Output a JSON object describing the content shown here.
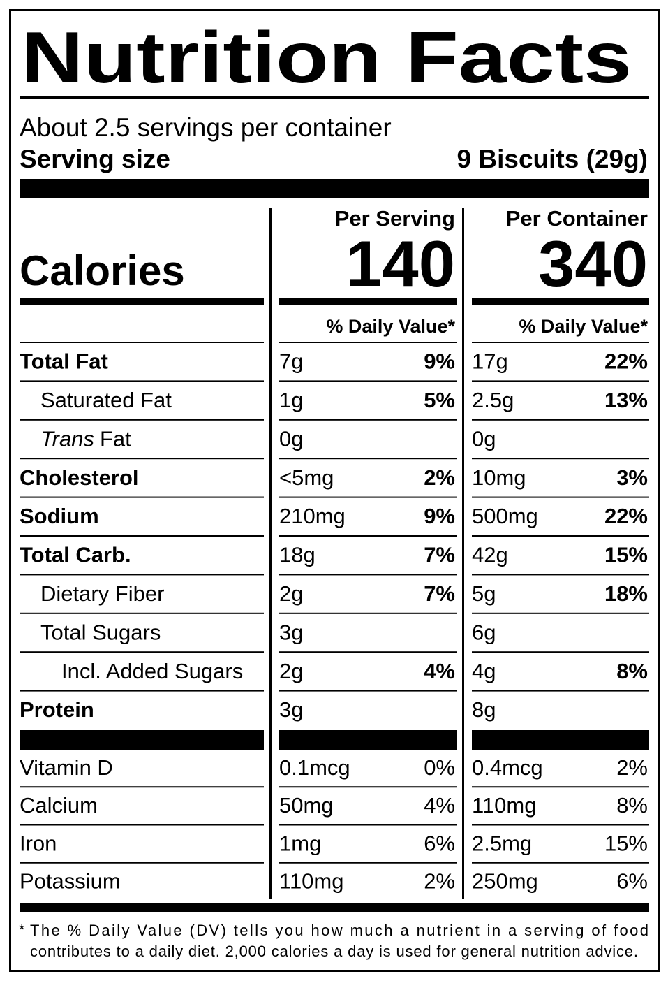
{
  "title": "Nutrition Facts",
  "servings_per_container": "About 2.5 servings per container",
  "serving_size": {
    "label": "Serving size",
    "value": "9 Biscuits (29g)"
  },
  "calories_label": "Calories",
  "columns": [
    {
      "heading": "Per Serving",
      "calories": "140",
      "daily_value_heading": "% Daily Value*"
    },
    {
      "heading": "Per Container",
      "calories": "340",
      "daily_value_heading": "% Daily Value*"
    }
  ],
  "nutrients": [
    {
      "name": "Total Fat",
      "bold": true,
      "indent": 0,
      "amounts": [
        "7g",
        "17g"
      ],
      "daily_values": [
        "9%",
        "22%"
      ]
    },
    {
      "name": "Saturated Fat",
      "bold": false,
      "indent": 1,
      "amounts": [
        "1g",
        "2.5g"
      ],
      "daily_values": [
        "5%",
        "13%"
      ]
    },
    {
      "name_italic": "Trans",
      "name": "Fat",
      "bold": false,
      "indent": 1,
      "amounts": [
        "0g",
        "0g"
      ]
    },
    {
      "name": "Cholesterol",
      "bold": true,
      "indent": 0,
      "amounts": [
        "<5mg",
        "10mg"
      ],
      "daily_values": [
        "2%",
        "3%"
      ]
    },
    {
      "name": "Sodium",
      "bold": true,
      "indent": 0,
      "amounts": [
        "210mg",
        "500mg"
      ],
      "daily_values": [
        "9%",
        "22%"
      ]
    },
    {
      "name": "Total Carb.",
      "bold": true,
      "indent": 0,
      "amounts": [
        "18g",
        "42g"
      ],
      "daily_values": [
        "7%",
        "15%"
      ]
    },
    {
      "name": "Dietary Fiber",
      "bold": false,
      "indent": 1,
      "amounts": [
        "2g",
        "5g"
      ],
      "daily_values": [
        "7%",
        "18%"
      ]
    },
    {
      "name": "Total Sugars",
      "bold": false,
      "indent": 1,
      "amounts": [
        "3g",
        "6g"
      ]
    },
    {
      "name": "Incl. Added Sugars",
      "bold": false,
      "indent": 2,
      "amounts": [
        "2g",
        "4g"
      ],
      "daily_values": [
        "4%",
        "8%"
      ]
    },
    {
      "name": "Protein",
      "bold": true,
      "indent": 0,
      "amounts": [
        "3g",
        "8g"
      ]
    }
  ],
  "vitamins": [
    {
      "name": "Vitamin D",
      "amounts": [
        "0.1mcg",
        "0.4mcg"
      ],
      "daily_values": [
        "0%",
        "2%"
      ]
    },
    {
      "name": "Calcium",
      "amounts": [
        "50mg",
        "110mg"
      ],
      "daily_values": [
        "4%",
        "8%"
      ]
    },
    {
      "name": "Iron",
      "amounts": [
        "1mg",
        "2.5mg"
      ],
      "daily_values": [
        "6%",
        "15%"
      ]
    },
    {
      "name": "Potassium",
      "amounts": [
        "110mg",
        "250mg"
      ],
      "daily_values": [
        "2%",
        "6%"
      ]
    }
  ],
  "footnote": {
    "marker": "*",
    "lines": [
      "The % Daily Value (DV) tells you how much a nutrient in a serving of food",
      "contributes to a daily diet. 2,000 calories a day is used for general nutrition advice."
    ]
  }
}
